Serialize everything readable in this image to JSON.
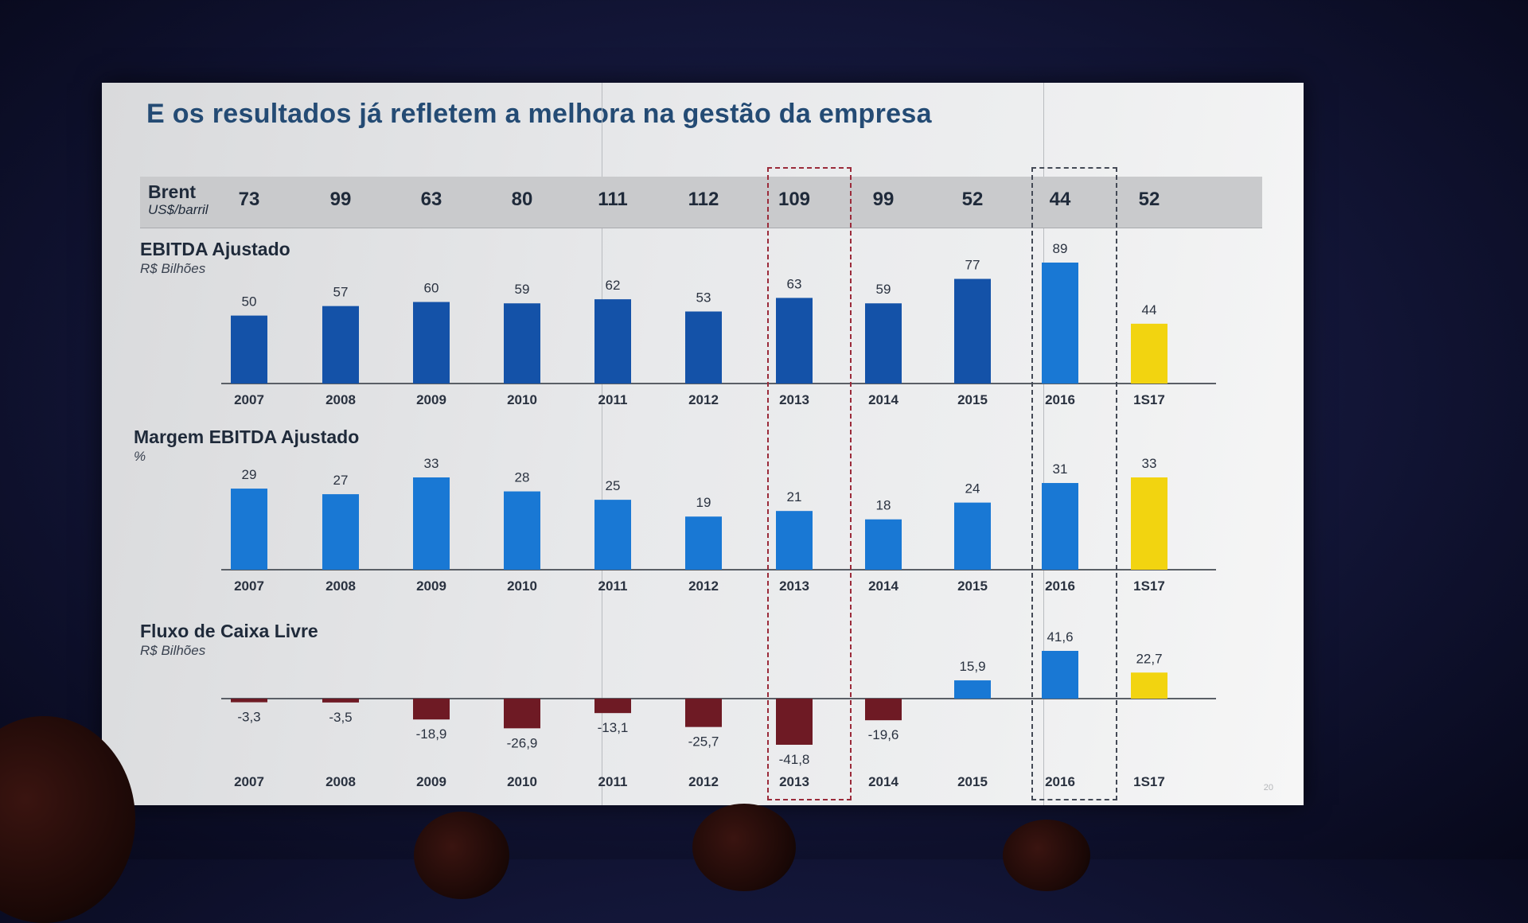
{
  "slide": {
    "title": "E os resultados já refletem a melhora na gestão da empresa",
    "page_number": "20"
  },
  "brent": {
    "label": "Brent",
    "unit": "US$/barril",
    "values": [
      "73",
      "99",
      "63",
      "80",
      "111",
      "112",
      "109",
      "99",
      "52",
      "44",
      "52"
    ]
  },
  "colors": {
    "bar_blue_dark": "#1452a8",
    "bar_blue": "#1978d4",
    "bar_yellow": "#f2d410",
    "bar_negative": "#6e1a24",
    "highlight_box": "#9b2b3a"
  },
  "chart_data": [
    {
      "type": "bar",
      "title": "EBITDA Ajustado",
      "unit": "R$ Bilhões",
      "categories": [
        "2007",
        "2008",
        "2009",
        "2010",
        "2011",
        "2012",
        "2013",
        "2014",
        "2015",
        "2016",
        "1S17"
      ],
      "values": [
        50,
        57,
        60,
        59,
        62,
        53,
        63,
        59,
        77,
        89,
        44
      ],
      "value_labels": [
        "50",
        "57",
        "60",
        "59",
        "62",
        "53",
        "63",
        "59",
        "77",
        "89",
        "44"
      ],
      "ylim": [
        0,
        89
      ]
    },
    {
      "type": "bar",
      "title": "Margem EBITDA Ajustado",
      "unit": "%",
      "categories": [
        "2007",
        "2008",
        "2009",
        "2010",
        "2011",
        "2012",
        "2013",
        "2014",
        "2015",
        "2016",
        "1S17"
      ],
      "values": [
        29,
        27,
        33,
        28,
        25,
        19,
        21,
        18,
        24,
        31,
        33
      ],
      "value_labels": [
        "29",
        "27",
        "33",
        "28",
        "25",
        "19",
        "21",
        "18",
        "24",
        "31",
        "33"
      ],
      "ylim": [
        0,
        33
      ]
    },
    {
      "type": "bar",
      "title": "Fluxo de Caixa Livre",
      "unit": "R$ Bilhões",
      "categories": [
        "2007",
        "2008",
        "2009",
        "2010",
        "2011",
        "2012",
        "2013",
        "2014",
        "2015",
        "2016",
        "1S17"
      ],
      "values": [
        -3.3,
        -3.5,
        -18.9,
        -26.9,
        -13.1,
        -25.7,
        -41.8,
        -19.6,
        15.9,
        41.6,
        22.7
      ],
      "value_labels": [
        "-3,3",
        "-3,5",
        "-18,9",
        "-26,9",
        "-13,1",
        "-25,7",
        "-41,8",
        "-19,6",
        "15,9",
        "41,6",
        "22,7"
      ],
      "ylim": [
        -41.8,
        41.6
      ]
    }
  ]
}
